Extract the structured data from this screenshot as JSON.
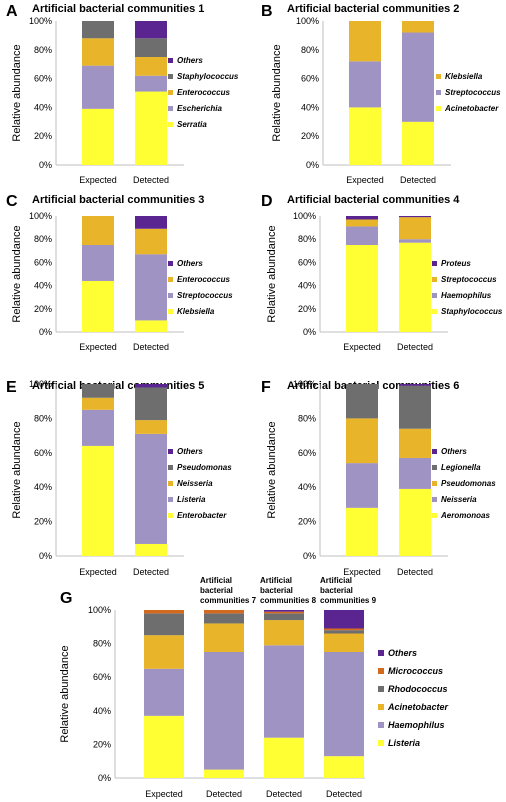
{
  "colors": {
    "Serratia": "#ffff33",
    "Escherichia": "#9e93c2",
    "Enterococcus": "#e8b42a",
    "Staphylococcus": "#6e6e6e",
    "Others": "#5a2590",
    "Klebsiella": "#ffff33",
    "Streptococcus": "#9e93c2",
    "Acinetobacter": "#e8b42a",
    "Proteus": "#5a2590",
    "Haemophilus": "#9e93c2",
    "Staphylococcus_D": "#ffff33",
    "Enterobacter": "#ffff33",
    "Listeria": "#9e93c2",
    "Neisseria": "#e8b42a",
    "Pseudomonas": "#6e6e6e",
    "Aeromonoas": "#ffff33",
    "Legionella": "#6e6e6e",
    "Micrococcus": "#d46a1e",
    "Rhodococcus": "#6e6e6e"
  },
  "y_axis_label": "Relative abundance",
  "chart_data": [
    {
      "letter": "A",
      "type": "bar",
      "stacked": true,
      "title": "Artificial bacterial communities 1",
      "ylabel": "Relative abundance",
      "ylim": [
        0,
        100
      ],
      "yticks": [
        "0%",
        "20%",
        "40%",
        "60%",
        "80%",
        "100%"
      ],
      "categories": [
        "Expected",
        "Detected"
      ],
      "series": [
        {
          "name": "Serratia",
          "color": "#ffff33",
          "values": [
            39,
            51
          ]
        },
        {
          "name": "Escherichia",
          "color": "#9e93c2",
          "values": [
            30,
            11
          ]
        },
        {
          "name": "Enterococcus",
          "color": "#e8b42a",
          "values": [
            19,
            13
          ]
        },
        {
          "name": "Staphylococcus",
          "color": "#6e6e6e",
          "values": [
            12,
            13
          ]
        },
        {
          "name": "Others",
          "color": "#5a2590",
          "values": [
            0,
            12
          ]
        }
      ]
    },
    {
      "letter": "B",
      "type": "bar",
      "stacked": true,
      "title": "Artificial bacterial communities 2",
      "ylabel": "Relative abundance",
      "ylim": [
        0,
        100
      ],
      "yticks": [
        "0%",
        "20%",
        "40%",
        "60%",
        "80%",
        "100%"
      ],
      "categories": [
        "Expected",
        "Detected"
      ],
      "series": [
        {
          "name": "Acinetobacter",
          "color": "#ffff33",
          "values": [
            40,
            30
          ]
        },
        {
          "name": "Streptococcus",
          "color": "#9e93c2",
          "values": [
            32,
            62
          ]
        },
        {
          "name": "Klebsiella",
          "color": "#e8b42a",
          "values": [
            28,
            8
          ]
        }
      ]
    },
    {
      "letter": "C",
      "type": "bar",
      "stacked": true,
      "title": "Artificial bacterial communities 3",
      "ylabel": "Relative abundance",
      "ylim": [
        0,
        100
      ],
      "yticks": [
        "0%",
        "20%",
        "40%",
        "60%",
        "80%",
        "100%"
      ],
      "categories": [
        "Expected",
        "Detected"
      ],
      "series": [
        {
          "name": "Klebsiella",
          "color": "#ffff33",
          "values": [
            44,
            10
          ]
        },
        {
          "name": "Streptococcus",
          "color": "#9e93c2",
          "values": [
            31,
            57
          ]
        },
        {
          "name": "Enterococcus",
          "color": "#e8b42a",
          "values": [
            25,
            22
          ]
        },
        {
          "name": "Others",
          "color": "#5a2590",
          "values": [
            0,
            11
          ]
        }
      ]
    },
    {
      "letter": "D",
      "type": "bar",
      "stacked": true,
      "title": "Artificial bacterial communities 4",
      "ylabel": "Relative abundance",
      "ylim": [
        0,
        100
      ],
      "yticks": [
        "0%",
        "20%",
        "40%",
        "60%",
        "80%",
        "100%"
      ],
      "categories": [
        "Expected",
        "Detected"
      ],
      "series": [
        {
          "name": "Staphylococcus",
          "color": "#ffff33",
          "values": [
            75,
            77
          ]
        },
        {
          "name": "Haemophilus",
          "color": "#9e93c2",
          "values": [
            16,
            3
          ]
        },
        {
          "name": "Streptococcus",
          "color": "#e8b42a",
          "values": [
            6,
            19
          ]
        },
        {
          "name": "Proteus",
          "color": "#5a2590",
          "values": [
            3,
            1
          ]
        }
      ]
    },
    {
      "letter": "E",
      "type": "bar",
      "stacked": true,
      "title": "Artificial bacterial communities 5",
      "ylabel": "Relative abundance",
      "ylim": [
        0,
        100
      ],
      "yticks": [
        "0%",
        "20%",
        "40%",
        "60%",
        "80%",
        "100%"
      ],
      "categories": [
        "Expected",
        "Detected"
      ],
      "series": [
        {
          "name": "Enterobacter",
          "color": "#ffff33",
          "values": [
            64,
            7
          ]
        },
        {
          "name": "Listeria",
          "color": "#9e93c2",
          "values": [
            21,
            64
          ]
        },
        {
          "name": "Neisseria",
          "color": "#e8b42a",
          "values": [
            7,
            8
          ]
        },
        {
          "name": "Pseudomonas",
          "color": "#6e6e6e",
          "values": [
            8,
            19
          ]
        },
        {
          "name": "Others",
          "color": "#5a2590",
          "values": [
            0,
            2
          ]
        }
      ]
    },
    {
      "letter": "F",
      "type": "bar",
      "stacked": true,
      "title": "Artificial bacterial communities 6",
      "ylabel": "Relative abundance",
      "ylim": [
        0,
        100
      ],
      "yticks": [
        "0%",
        "20%",
        "40%",
        "60%",
        "80%",
        "100%"
      ],
      "categories": [
        "Expected",
        "Detected"
      ],
      "series": [
        {
          "name": "Aeromonoas",
          "color": "#ffff33",
          "values": [
            28,
            39
          ]
        },
        {
          "name": "Neisseria",
          "color": "#9e93c2",
          "values": [
            26,
            18
          ]
        },
        {
          "name": "Pseudomonas",
          "color": "#e8b42a",
          "values": [
            26,
            17
          ]
        },
        {
          "name": "Legionella",
          "color": "#6e6e6e",
          "values": [
            20,
            25
          ]
        },
        {
          "name": "Others",
          "color": "#5a2590",
          "values": [
            0,
            1
          ]
        }
      ]
    },
    {
      "letter": "G",
      "type": "bar",
      "stacked": true,
      "title": "",
      "ylabel": "Relative abundance",
      "ylim": [
        0,
        100
      ],
      "yticks": [
        "0%",
        "20%",
        "40%",
        "60%",
        "80%",
        "100%"
      ],
      "categories": [
        "Expected",
        "Detected",
        "Detected",
        "Detected"
      ],
      "top_labels": [
        "",
        "Artificial bacterial communities 7",
        "Artificial bacterial communities 8",
        "Artificial bacterial communities 9"
      ],
      "series": [
        {
          "name": "Listeria",
          "color": "#ffff33",
          "values": [
            37,
            5,
            24,
            13
          ]
        },
        {
          "name": "Haemophilus",
          "color": "#9e93c2",
          "values": [
            28,
            70,
            55,
            62
          ]
        },
        {
          "name": "Acinetobacter",
          "color": "#e8b42a",
          "values": [
            20,
            17,
            15,
            11
          ]
        },
        {
          "name": "Rhodococcus",
          "color": "#6e6e6e",
          "values": [
            13,
            6,
            4,
            2
          ]
        },
        {
          "name": "Micrococcus",
          "color": "#d46a1e",
          "values": [
            2,
            2,
            1,
            1
          ]
        },
        {
          "name": "Others",
          "color": "#5a2590",
          "values": [
            0,
            0,
            1,
            11
          ]
        }
      ]
    }
  ]
}
